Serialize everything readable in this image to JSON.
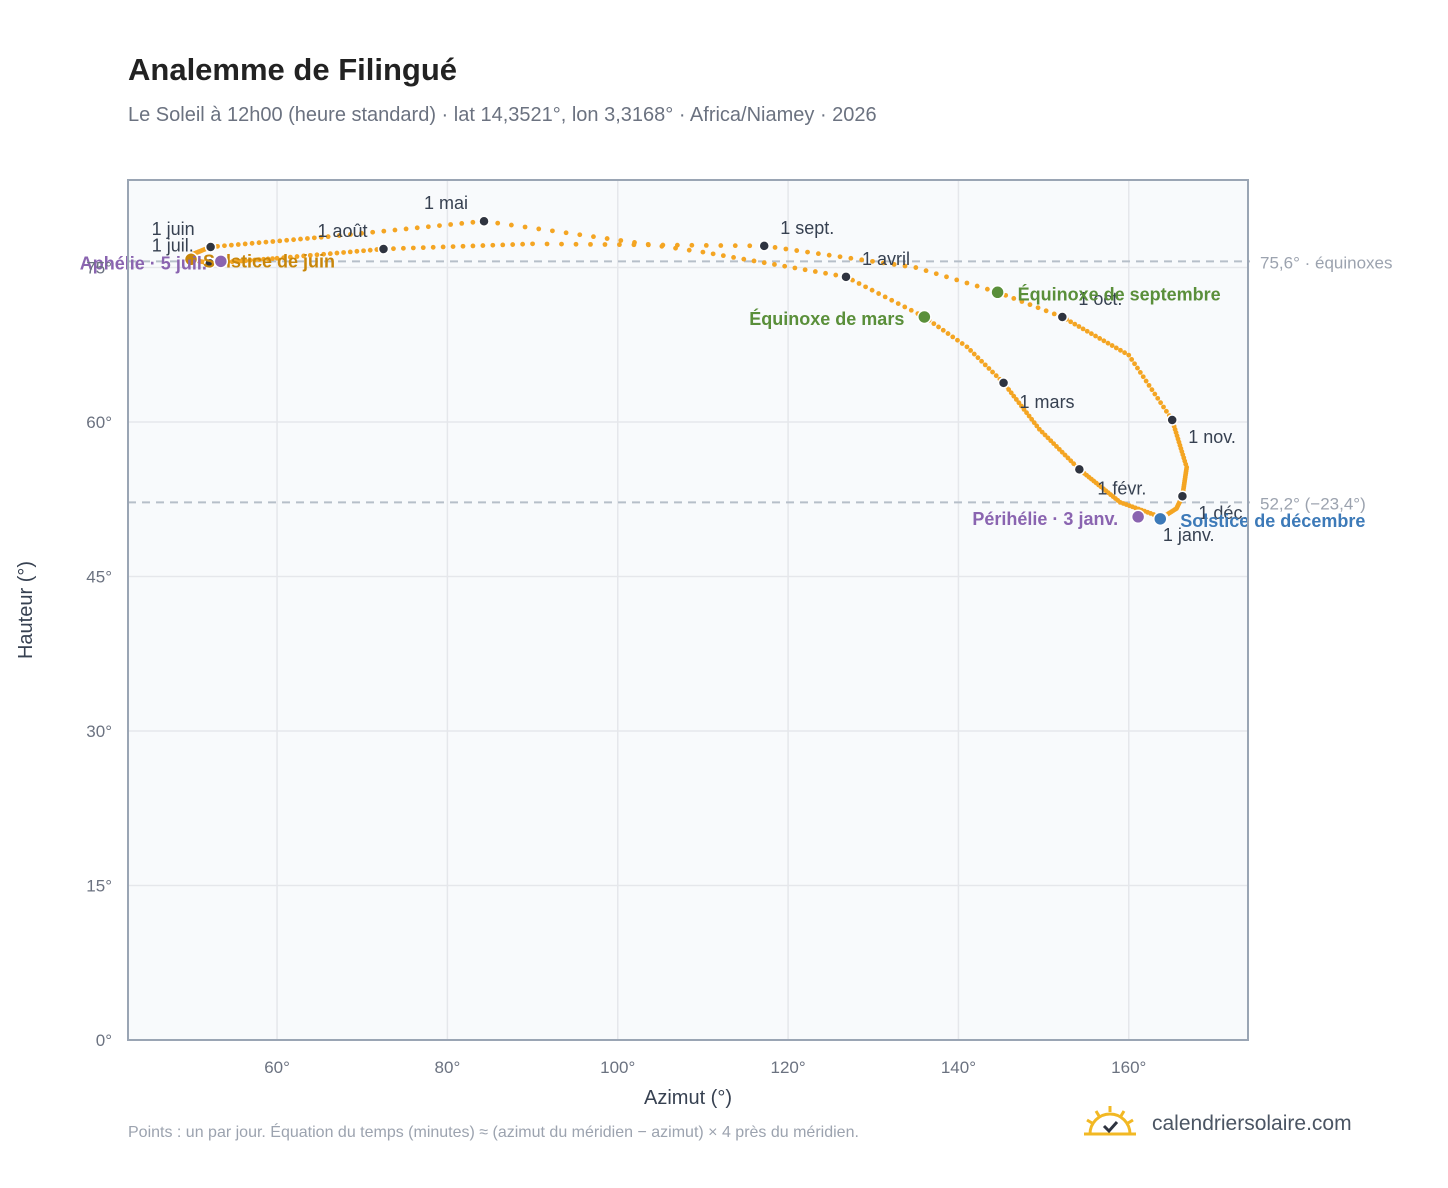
{
  "header": {
    "title": "Analemme de Filingué",
    "subtitle": "Le Soleil à 12h00 (heure standard) · lat 14,3521°, lon 3,3168° · Africa/Niamey · 2026"
  },
  "footer": {
    "note": "Points : un par jour. Équation du temps (minutes) ≈ (azimut du méridien − azimut) × 4 près du méridien.",
    "brand": "calendriersolaire.com"
  },
  "colors": {
    "path": "#f4a523",
    "marker": "#2f3440",
    "equinox": "#5a8f3a",
    "june": "#c8860a",
    "december": "#3d7ab8",
    "apsis": "#8a64b0",
    "grid": "#e5e7eb",
    "plot_bg": "#f8fafc",
    "frame": "#9aa5b4",
    "ref_line": "#b6bfc9"
  },
  "chart_data": {
    "type": "scatter",
    "title": "Analemme de Filingué",
    "xlabel": "Azimut (°)",
    "ylabel": "Hauteur (°)",
    "xlim": [
      42.5,
      174
    ],
    "ylim": [
      0,
      83.5
    ],
    "xticks": [
      60,
      80,
      100,
      120,
      140,
      160
    ],
    "yticks": [
      0,
      15,
      30,
      45,
      60,
      75
    ],
    "xtick_labels": [
      "60°",
      "80°",
      "100°",
      "120°",
      "140°",
      "160°"
    ],
    "ytick_labels": [
      "0°",
      "15°",
      "30°",
      "45°",
      "60°",
      "75°"
    ],
    "grid": true,
    "path_keypoints": [
      {
        "doy": 1,
        "az": 164.0,
        "alt": 50.7
      },
      {
        "doy": 15,
        "az": 159.0,
        "alt": 52.2
      },
      {
        "doy": 32,
        "az": 154.2,
        "alt": 55.4
      },
      {
        "doy": 46,
        "az": 149.5,
        "alt": 59.3
      },
      {
        "doy": 60,
        "az": 145.3,
        "alt": 63.8
      },
      {
        "doy": 70,
        "az": 141.0,
        "alt": 67.3
      },
      {
        "doy": 79,
        "az": 136.0,
        "alt": 70.2
      },
      {
        "doy": 91,
        "az": 126.8,
        "alt": 74.1
      },
      {
        "doy": 105,
        "az": 110.0,
        "alt": 76.5
      },
      {
        "doy": 121,
        "az": 84.3,
        "alt": 79.5
      },
      {
        "doy": 135,
        "az": 66.0,
        "alt": 78.0
      },
      {
        "doy": 152,
        "az": 52.2,
        "alt": 77.0
      },
      {
        "doy": 165,
        "az": 49.8,
        "alt": 76.2
      },
      {
        "doy": 172,
        "az": 49.9,
        "alt": 75.8
      },
      {
        "doy": 182,
        "az": 52.1,
        "alt": 75.4
      },
      {
        "doy": 197,
        "az": 60.0,
        "alt": 75.9
      },
      {
        "doy": 213,
        "az": 72.5,
        "alt": 76.8
      },
      {
        "doy": 228,
        "az": 90.0,
        "alt": 77.3
      },
      {
        "doy": 244,
        "az": 117.2,
        "alt": 77.1
      },
      {
        "doy": 258,
        "az": 135.0,
        "alt": 75.0
      },
      {
        "doy": 266,
        "az": 144.6,
        "alt": 72.6
      },
      {
        "doy": 274,
        "az": 152.2,
        "alt": 70.2
      },
      {
        "doy": 290,
        "az": 160.0,
        "alt": 66.5
      },
      {
        "doy": 305,
        "az": 165.1,
        "alt": 60.2
      },
      {
        "doy": 320,
        "az": 166.8,
        "alt": 55.6
      },
      {
        "doy": 335,
        "az": 166.3,
        "alt": 52.8
      },
      {
        "doy": 345,
        "az": 165.6,
        "alt": 51.6
      },
      {
        "doy": 355,
        "az": 163.7,
        "alt": 50.6
      },
      {
        "doy": 365,
        "az": 163.5,
        "alt": 50.6
      }
    ],
    "month_markers": [
      {
        "label": "1 janv.",
        "az": 164.0,
        "alt": 50.7
      },
      {
        "label": "1 févr.",
        "az": 154.2,
        "alt": 55.4
      },
      {
        "label": "1 mars",
        "az": 145.3,
        "alt": 63.8
      },
      {
        "label": "1 avril",
        "az": 126.8,
        "alt": 74.1
      },
      {
        "label": "1 mai",
        "az": 84.3,
        "alt": 79.5
      },
      {
        "label": "1 juin",
        "az": 52.2,
        "alt": 77.0
      },
      {
        "label": "1 juil.",
        "az": 52.1,
        "alt": 75.4
      },
      {
        "label": "1 août",
        "az": 72.5,
        "alt": 76.8
      },
      {
        "label": "1 sept.",
        "az": 117.2,
        "alt": 77.1
      },
      {
        "label": "1 oct.",
        "az": 152.2,
        "alt": 70.2
      },
      {
        "label": "1 nov.",
        "az": 165.1,
        "alt": 60.2
      },
      {
        "label": "1 déc.",
        "az": 166.3,
        "alt": 52.8
      }
    ],
    "events": [
      {
        "label": "Équinoxe de mars",
        "az": 136.0,
        "alt": 70.2,
        "color_key": "equinox"
      },
      {
        "label": "Équinoxe de septembre",
        "az": 144.6,
        "alt": 72.6,
        "color_key": "equinox"
      },
      {
        "label": "Solstice de juin",
        "az": 49.9,
        "alt": 75.8,
        "color_key": "june"
      },
      {
        "label": "Solstice de décembre",
        "az": 163.7,
        "alt": 50.6,
        "color_key": "december"
      },
      {
        "label": "Aphélie · 5 juil.",
        "az": 53.4,
        "alt": 75.6,
        "color_key": "apsis"
      },
      {
        "label": "Périhélie · 3 janv.",
        "az": 161.1,
        "alt": 50.8,
        "color_key": "apsis"
      }
    ],
    "reference_lines": [
      {
        "alt": 75.6,
        "label": "75,6° · équinoxes"
      },
      {
        "alt": 52.2,
        "label": "52,2° (−23,4°)"
      }
    ]
  }
}
